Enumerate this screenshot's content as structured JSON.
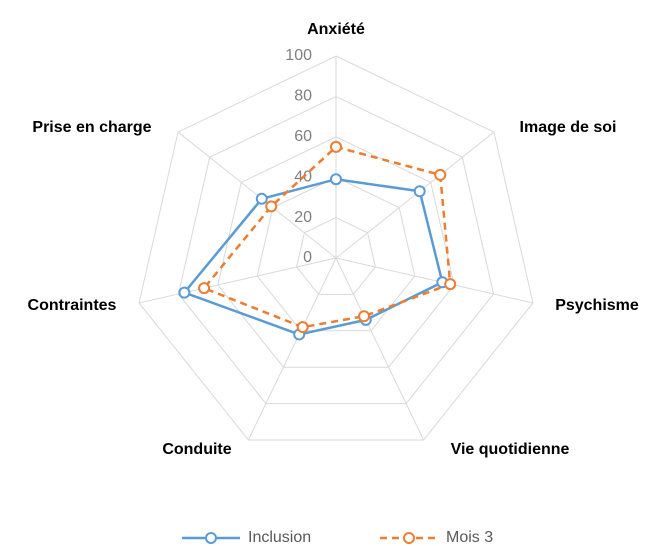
{
  "chart_data": {
    "type": "radar",
    "categories": [
      "Anxiété",
      "Image de soi",
      "Psychisme",
      "Vie quotidienne",
      "Conduite",
      "Contraintes",
      "Prise en charge"
    ],
    "series": [
      {
        "name": "Inclusion",
        "color": "#5b9bd5",
        "values": [
          39,
          53,
          54,
          34,
          42,
          77,
          47
        ]
      },
      {
        "name": "Mois 3",
        "color": "#ed7d31",
        "dashed": true,
        "values": [
          55,
          66,
          58,
          32,
          38,
          67,
          41
        ]
      }
    ],
    "rlim": [
      0,
      100
    ],
    "rticks": [
      0,
      20,
      40,
      60,
      80,
      100
    ],
    "grid": true,
    "legend": "bottom"
  }
}
